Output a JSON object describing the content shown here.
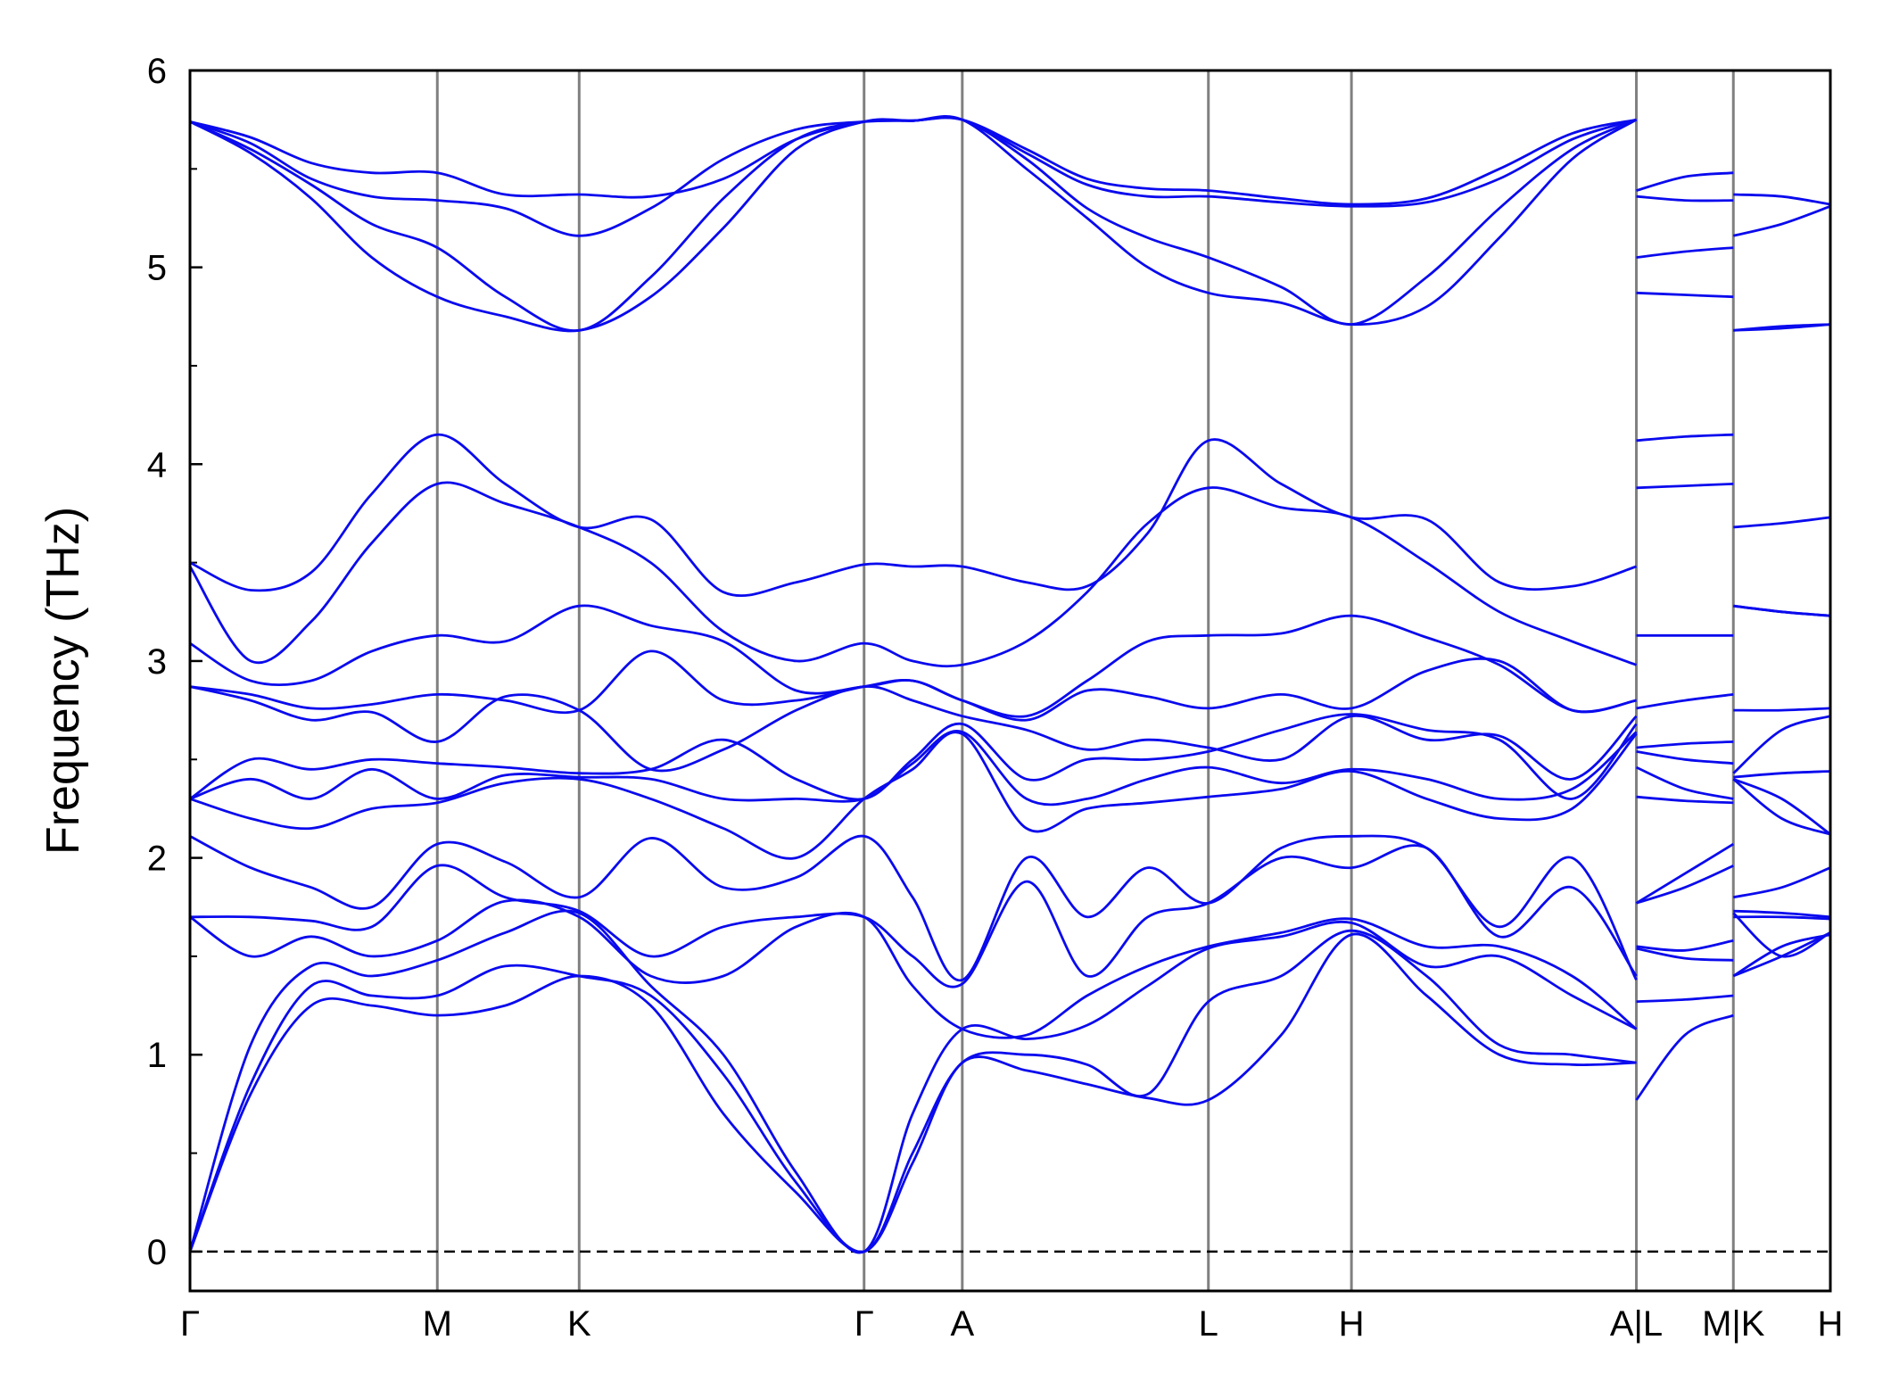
{
  "chart_data": {
    "type": "line",
    "ylabel": "Frequency (THz)",
    "color": "#0a0aee",
    "xlim": [
      0,
      13.53
    ],
    "ylim": [
      -0.2,
      6
    ],
    "yticks": [
      0,
      1,
      2,
      3,
      4,
      5,
      6
    ],
    "yticks_minor": [
      0.5,
      1.5,
      2.5,
      3.5,
      4.5,
      5.5
    ],
    "xticks": [
      {
        "value": 0,
        "label": "Γ"
      },
      {
        "value": 2.04,
        "label": "M"
      },
      {
        "value": 3.21,
        "label": "K"
      },
      {
        "value": 5.56,
        "label": "Γ"
      },
      {
        "value": 6.37,
        "label": "A"
      },
      {
        "value": 8.4,
        "label": "L"
      },
      {
        "value": 9.58,
        "label": "H"
      },
      {
        "value": 11.93,
        "label": "A|L"
      },
      {
        "value": 12.73,
        "label": "M|K"
      },
      {
        "value": 13.53,
        "label": "H"
      }
    ],
    "grid": true,
    "zero_line": 0,
    "x": [
      0,
      0.5,
      1,
      1.5,
      2.04,
      2.6,
      3.21,
      3.8,
      4.4,
      5.0,
      5.56,
      5.96,
      6.37,
      6.9,
      7.4,
      7.9,
      8.4,
      9.0,
      9.58,
      10.2,
      10.8,
      11.4,
      11.93,
      11.93,
      11.93,
      12.33,
      12.73,
      12.73,
      12.73,
      13.13,
      13.53
    ],
    "series": [
      {
        "values": [
          5.74,
          5.66,
          5.53,
          5.48,
          5.48,
          5.37,
          5.37,
          5.36,
          5.45,
          5.65,
          5.74,
          5.745,
          5.75,
          5.6,
          5.45,
          5.4,
          5.39,
          5.35,
          5.32,
          5.35,
          5.5,
          5.68,
          5.75,
          null,
          5.39,
          5.46,
          5.48,
          null,
          5.37,
          5.36,
          5.32
        ]
      },
      {
        "values": [
          5.74,
          5.63,
          5.45,
          5.36,
          5.34,
          5.3,
          5.16,
          5.3,
          5.55,
          5.7,
          5.74,
          5.745,
          5.75,
          5.58,
          5.42,
          5.36,
          5.36,
          5.33,
          5.31,
          5.33,
          5.45,
          5.65,
          5.75,
          null,
          5.36,
          5.34,
          5.34,
          null,
          5.16,
          5.22,
          5.31
        ]
      },
      {
        "values": [
          5.74,
          5.6,
          5.42,
          5.22,
          5.1,
          4.85,
          4.68,
          4.95,
          5.35,
          5.65,
          5.74,
          5.745,
          5.75,
          5.55,
          5.3,
          5.15,
          5.05,
          4.9,
          4.71,
          4.95,
          5.3,
          5.6,
          5.75,
          null,
          5.05,
          5.08,
          5.1,
          null,
          4.68,
          4.69,
          4.71
        ]
      },
      {
        "values": [
          5.74,
          5.58,
          5.35,
          5.05,
          4.85,
          4.75,
          4.68,
          4.85,
          5.2,
          5.6,
          5.74,
          5.745,
          5.75,
          5.5,
          5.25,
          5.0,
          4.87,
          4.82,
          4.71,
          4.8,
          5.15,
          5.55,
          5.75,
          null,
          4.87,
          4.86,
          4.85,
          null,
          4.68,
          4.7,
          4.71
        ]
      },
      {
        "values": [
          3.5,
          3.36,
          3.45,
          3.85,
          4.15,
          3.9,
          3.68,
          3.72,
          3.35,
          3.4,
          3.49,
          3.48,
          3.48,
          3.4,
          3.38,
          3.65,
          4.12,
          3.9,
          3.73,
          3.72,
          3.4,
          3.38,
          3.48,
          null,
          4.12,
          4.14,
          4.15,
          null,
          3.68,
          3.7,
          3.73
        ]
      },
      {
        "values": [
          3.48,
          3.0,
          3.2,
          3.6,
          3.9,
          3.8,
          3.68,
          3.5,
          3.15,
          3.0,
          3.09,
          3.0,
          2.98,
          3.1,
          3.35,
          3.7,
          3.88,
          3.78,
          3.73,
          3.5,
          3.25,
          3.1,
          2.98,
          null,
          3.88,
          3.89,
          3.9,
          null,
          3.28,
          3.25,
          3.23
        ]
      },
      {
        "values": [
          3.09,
          2.9,
          2.9,
          3.05,
          3.13,
          3.1,
          3.28,
          3.18,
          3.1,
          2.85,
          2.87,
          2.9,
          2.8,
          2.72,
          2.9,
          3.1,
          3.13,
          3.14,
          3.23,
          3.12,
          2.98,
          2.75,
          2.8,
          null,
          3.13,
          3.13,
          3.13,
          null,
          3.28,
          3.25,
          3.23
        ]
      },
      {
        "values": [
          2.87,
          2.83,
          2.76,
          2.78,
          2.83,
          2.8,
          2.75,
          3.05,
          2.8,
          2.8,
          2.87,
          2.9,
          2.8,
          2.7,
          2.85,
          2.82,
          2.76,
          2.83,
          2.76,
          2.95,
          3.0,
          2.75,
          2.8,
          null,
          2.76,
          2.8,
          2.83,
          null,
          2.75,
          2.75,
          2.76
        ]
      },
      {
        "values": [
          2.87,
          2.8,
          2.7,
          2.74,
          2.59,
          2.82,
          2.75,
          2.45,
          2.55,
          2.75,
          2.87,
          2.8,
          2.72,
          2.65,
          2.55,
          2.6,
          2.56,
          2.5,
          2.72,
          2.6,
          2.62,
          2.4,
          2.72,
          null,
          2.56,
          2.58,
          2.59,
          null,
          2.43,
          2.65,
          2.72
        ]
      },
      {
        "values": [
          2.3,
          2.5,
          2.45,
          2.5,
          2.48,
          2.46,
          2.43,
          2.45,
          2.6,
          2.4,
          2.3,
          2.5,
          2.68,
          2.4,
          2.5,
          2.5,
          2.54,
          2.65,
          2.73,
          2.65,
          2.6,
          2.3,
          2.68,
          null,
          2.54,
          2.5,
          2.48,
          null,
          2.41,
          2.43,
          2.44
        ]
      },
      {
        "values": [
          2.3,
          2.4,
          2.3,
          2.45,
          2.3,
          2.42,
          2.41,
          2.4,
          2.3,
          2.3,
          2.3,
          2.48,
          2.64,
          2.3,
          2.3,
          2.4,
          2.46,
          2.38,
          2.45,
          2.4,
          2.3,
          2.35,
          2.64,
          null,
          2.46,
          2.35,
          2.3,
          null,
          2.4,
          2.3,
          2.12
        ]
      },
      {
        "values": [
          2.3,
          2.2,
          2.15,
          2.25,
          2.28,
          2.38,
          2.4,
          2.3,
          2.15,
          2.0,
          2.3,
          2.45,
          2.63,
          2.15,
          2.25,
          2.28,
          2.31,
          2.35,
          2.44,
          2.3,
          2.2,
          2.25,
          2.63,
          null,
          2.31,
          2.29,
          2.28,
          null,
          2.4,
          2.2,
          2.12
        ]
      },
      {
        "values": [
          2.11,
          1.95,
          1.85,
          1.75,
          2.07,
          1.98,
          1.8,
          2.1,
          1.85,
          1.9,
          2.11,
          1.8,
          1.38,
          2.0,
          1.7,
          1.95,
          1.77,
          2.05,
          2.11,
          2.05,
          1.65,
          2.0,
          1.38,
          null,
          1.77,
          1.92,
          2.07,
          null,
          1.8,
          1.85,
          1.95
        ]
      },
      {
        "values": [
          1.7,
          1.7,
          1.68,
          1.65,
          1.96,
          1.8,
          1.73,
          1.5,
          1.65,
          1.7,
          1.7,
          1.5,
          1.36,
          1.88,
          1.4,
          1.7,
          1.77,
          2.0,
          1.95,
          2.05,
          1.6,
          1.85,
          1.4,
          null,
          1.77,
          1.85,
          1.96,
          null,
          1.73,
          1.72,
          1.7
        ]
      },
      {
        "values": [
          1.7,
          1.5,
          1.6,
          1.5,
          1.58,
          1.78,
          1.7,
          1.4,
          1.4,
          1.65,
          1.7,
          1.35,
          1.13,
          1.1,
          1.3,
          1.45,
          1.55,
          1.62,
          1.69,
          1.55,
          1.55,
          1.4,
          1.13,
          null,
          1.55,
          1.53,
          1.58,
          null,
          1.7,
          1.7,
          1.69
        ]
      },
      {
        "values": [
          0,
          1.05,
          1.45,
          1.4,
          1.48,
          1.62,
          1.72,
          1.35,
          1.0,
          0.4,
          0,
          0.7,
          1.13,
          1.08,
          1.15,
          1.35,
          1.54,
          1.6,
          1.67,
          1.45,
          1.5,
          1.3,
          1.13,
          null,
          1.54,
          1.49,
          1.48,
          null,
          1.72,
          1.5,
          1.62
        ]
      },
      {
        "values": [
          0,
          0.85,
          1.35,
          1.3,
          1.3,
          1.45,
          1.4,
          1.3,
          0.9,
          0.35,
          0,
          0.5,
          0.96,
          1.0,
          0.95,
          0.8,
          1.27,
          1.4,
          1.63,
          1.4,
          1.05,
          1.0,
          0.96,
          null,
          1.27,
          1.28,
          1.3,
          null,
          1.4,
          1.5,
          1.62
        ]
      },
      {
        "values": [
          0,
          0.8,
          1.25,
          1.25,
          1.2,
          1.25,
          1.4,
          1.25,
          0.7,
          0.3,
          0,
          0.45,
          0.96,
          0.92,
          0.85,
          0.78,
          0.77,
          1.1,
          1.61,
          1.3,
          1.0,
          0.95,
          0.96,
          null,
          0.77,
          1.1,
          1.2,
          null,
          1.4,
          1.55,
          1.61
        ]
      }
    ]
  }
}
